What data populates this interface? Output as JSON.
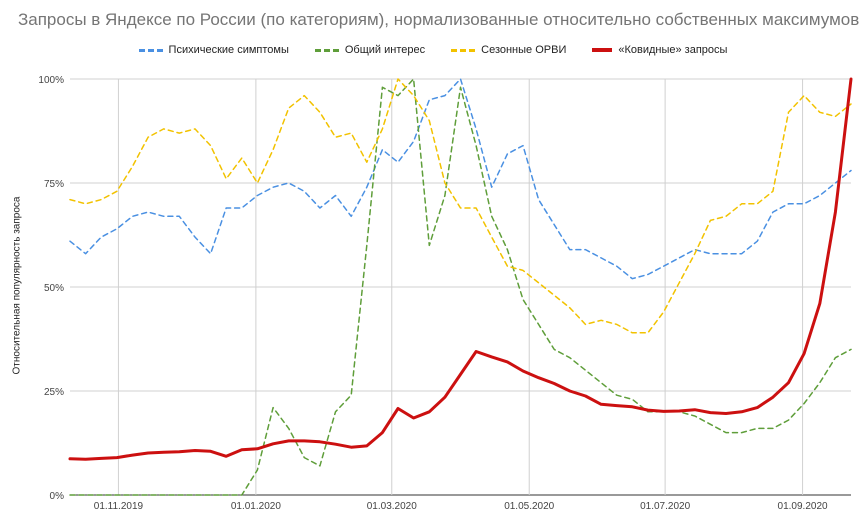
{
  "chart_data": {
    "type": "line",
    "title": "Запросы в Яндексе по России (по категориям), нормализованные относительно собственных максимумов",
    "ylabel": "Относительная популярность запроса",
    "xlabel": "",
    "x_tick_labels": [
      "01.11.2019",
      "01.01.2020",
      "01.03.2020",
      "01.05.2020",
      "01.07.2020",
      "01.09.2020"
    ],
    "y_tick_labels": [
      "0%",
      "25%",
      "50%",
      "75%",
      "100%"
    ],
    "ylim": [
      0,
      100
    ],
    "grid": true,
    "legend_position": "top",
    "series": [
      {
        "name": "Психические симптомы",
        "color": "#4a90e2",
        "style": "dashed",
        "values": [
          61,
          58,
          62,
          64,
          67,
          68,
          67,
          67,
          62,
          58,
          69,
          69,
          72,
          74,
          75,
          73,
          69,
          72,
          67,
          74,
          83,
          80,
          85,
          95,
          96,
          100,
          88,
          74,
          82,
          84,
          71,
          65,
          59,
          59,
          57,
          55,
          52,
          53,
          55,
          57,
          59,
          58,
          58,
          58,
          61,
          68,
          70,
          70,
          72,
          75,
          78
        ]
      },
      {
        "name": "Общий интерес",
        "color": "#5f9e3a",
        "style": "dashed",
        "values": [
          0,
          0,
          0,
          0,
          0,
          0,
          0,
          0,
          0,
          0,
          0,
          0,
          6,
          21,
          16,
          9,
          7,
          20,
          24,
          60,
          98,
          96,
          100,
          60,
          72,
          98,
          84,
          67,
          59,
          47,
          41,
          35,
          33,
          30,
          27,
          24,
          23,
          20,
          20,
          20,
          19,
          17,
          15,
          15,
          16,
          16,
          18,
          22,
          27,
          33,
          35
        ]
      },
      {
        "name": "Сезонные ОРВИ",
        "color": "#f2c200",
        "style": "dashed",
        "values": [
          71,
          70,
          71,
          73,
          79,
          86,
          88,
          87,
          88,
          84,
          76,
          81,
          75,
          83,
          93,
          96,
          92,
          86,
          87,
          80,
          88,
          100,
          96,
          90,
          75,
          69,
          69,
          62,
          55,
          54,
          51,
          48,
          45,
          41,
          42,
          41,
          39,
          39,
          44,
          51,
          58,
          66,
          67,
          70,
          70,
          73,
          92,
          96,
          92,
          91,
          94
        ]
      },
      {
        "name": "«Ковидные» запросы",
        "color": "#cc1010",
        "style": "solid",
        "values": [
          8.7,
          8.6,
          8.8,
          9.0,
          9.6,
          10.1,
          10.3,
          10.4,
          10.7,
          10.5,
          9.3,
          10.9,
          11.1,
          12.3,
          13.0,
          13.0,
          12.8,
          12.2,
          11.5,
          11.8,
          15.0,
          20.8,
          18.5,
          20.0,
          23.5,
          29.0,
          34.5,
          33.2,
          32.0,
          29.8,
          28.2,
          26.8,
          25.0,
          23.8,
          21.8,
          21.5,
          21.2,
          20.4,
          20.1,
          20.2,
          20.5,
          19.8,
          19.6,
          20.0,
          21.0,
          23.5,
          27.0,
          34.0,
          46.0,
          68.0,
          100.0
        ]
      }
    ]
  }
}
